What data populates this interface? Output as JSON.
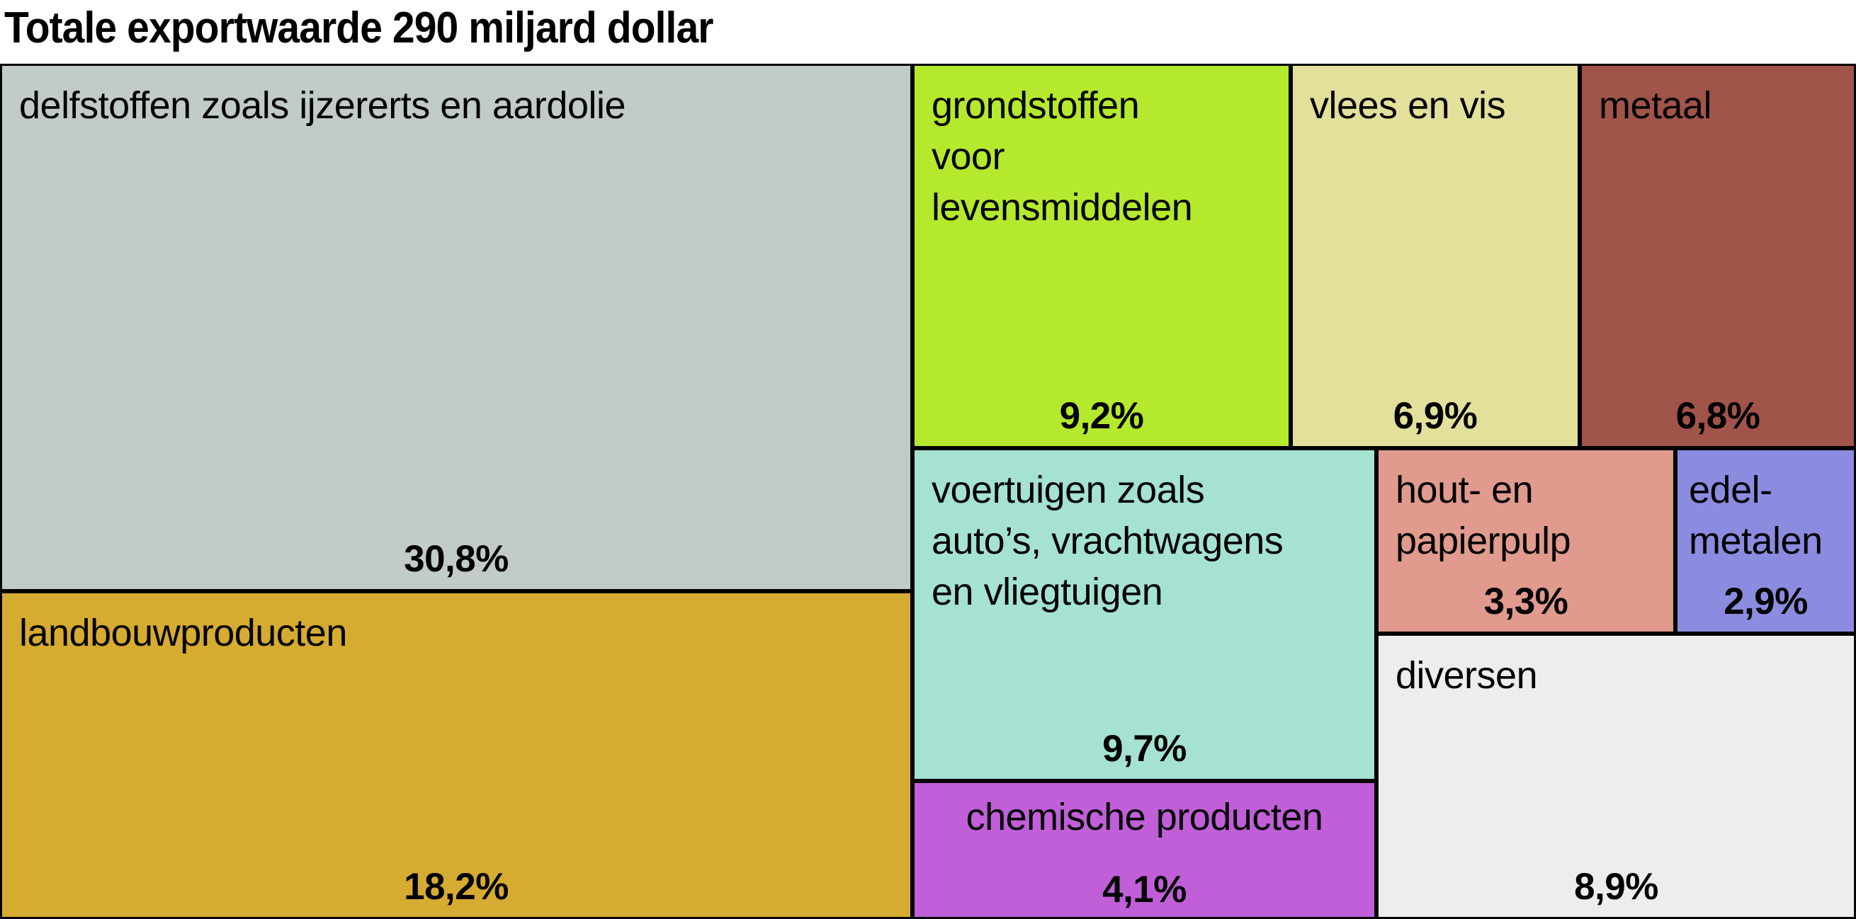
{
  "title": "Totale exportwaarde 290 miljard dollar",
  "chart_data": {
    "type": "treemap",
    "title": "Totale exportwaarde 290 miljard dollar",
    "total": "290 miljard dollar",
    "unit": "%",
    "border_color": "#000000",
    "items": [
      {
        "label": "delfstoffen zoals ijzererts en aardolie",
        "value": 30.8,
        "value_label": "30,8%",
        "color": "#c2ccc7"
      },
      {
        "label": "landbouwproducten",
        "value": 18.2,
        "value_label": "18,2%",
        "color": "#d6ab31"
      },
      {
        "label": "grondstoffen\nvoor\nlevensmiddelen",
        "value": 9.2,
        "value_label": "9,2%",
        "color": "#b5e92d"
      },
      {
        "label": "vlees en vis",
        "value": 6.9,
        "value_label": "6,9%",
        "color": "#e3e09c"
      },
      {
        "label": "metaal",
        "value": 6.8,
        "value_label": "6,8%",
        "color": "#a0544a"
      },
      {
        "label": "voertuigen zoals\nauto’s, vrachtwagens\nen vliegtuigen",
        "value": 9.7,
        "value_label": "9,7%",
        "color": "#a5e2d2"
      },
      {
        "label": "chemische producten",
        "value": 4.1,
        "value_label": "4,1%",
        "color": "#c05fd8"
      },
      {
        "label": "hout- en\npapierpulp",
        "value": 3.3,
        "value_label": "3,3%",
        "color": "#e09a8e"
      },
      {
        "label": "edel-\nmetalen",
        "value": 2.9,
        "value_label": "2,9%",
        "color": "#8b8ce0"
      },
      {
        "label": "diversen",
        "value": 8.9,
        "value_label": "8,9%",
        "color": "#eceeee"
      }
    ]
  }
}
